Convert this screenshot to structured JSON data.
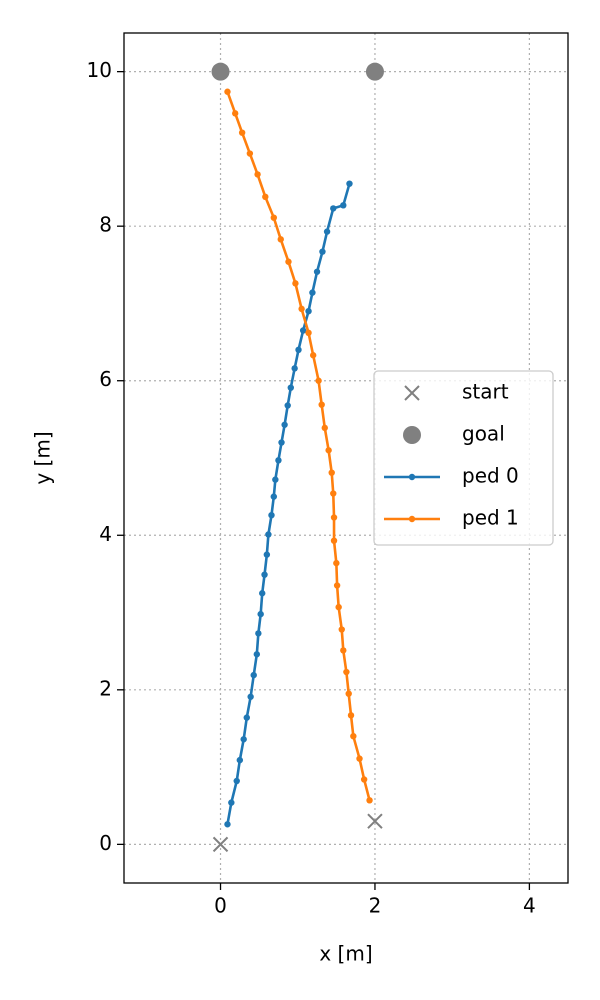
{
  "chart_data": {
    "type": "line",
    "xlabel": "x [m]",
    "ylabel": "y [m]",
    "xlim": [
      -1.25,
      4.5
    ],
    "ylim": [
      -0.5,
      10.5
    ],
    "xticks": [
      0,
      2,
      4
    ],
    "yticks": [
      0,
      2,
      4,
      6,
      8,
      10
    ],
    "grid": true,
    "legend": "center right",
    "series": [
      {
        "name": "start",
        "color": "#808080",
        "marker": "x",
        "linestyle": "none",
        "x": [
          0,
          2
        ],
        "y": [
          0,
          0.3
        ]
      },
      {
        "name": "goal",
        "color": "#808080",
        "marker": "o",
        "linestyle": "none",
        "x": [
          0,
          2
        ],
        "y": [
          10,
          10
        ]
      },
      {
        "name": "ped 0",
        "color": "#1f77b4",
        "marker": ".",
        "linestyle": "-",
        "x": [
          0.09,
          0.14,
          0.21,
          0.25,
          0.3,
          0.34,
          0.39,
          0.43,
          0.47,
          0.49,
          0.52,
          0.54,
          0.57,
          0.6,
          0.62,
          0.66,
          0.69,
          0.71,
          0.75,
          0.79,
          0.83,
          0.87,
          0.91,
          0.96,
          1.01,
          1.07,
          1.14,
          1.19,
          1.25,
          1.32,
          1.38,
          1.46,
          1.59,
          1.67
        ],
        "y": [
          0.26,
          0.54,
          0.82,
          1.09,
          1.36,
          1.64,
          1.91,
          2.19,
          2.46,
          2.73,
          2.98,
          3.25,
          3.49,
          3.75,
          4.01,
          4.26,
          4.5,
          4.72,
          4.97,
          5.2,
          5.43,
          5.68,
          5.91,
          6.16,
          6.4,
          6.65,
          6.9,
          7.14,
          7.41,
          7.67,
          7.93,
          8.23,
          8.27,
          8.55
        ]
      },
      {
        "name": "ped 1",
        "color": "#ff7f0e",
        "marker": ".",
        "linestyle": "-",
        "x": [
          0.09,
          0.19,
          0.28,
          0.38,
          0.48,
          0.58,
          0.69,
          0.78,
          0.88,
          0.97,
          1.05,
          1.14,
          1.2,
          1.27,
          1.31,
          1.35,
          1.4,
          1.44,
          1.46,
          1.47,
          1.47,
          1.5,
          1.51,
          1.53,
          1.57,
          1.59,
          1.63,
          1.66,
          1.69,
          1.72,
          1.8,
          1.86,
          1.93
        ],
        "y": [
          9.74,
          9.46,
          9.21,
          8.94,
          8.67,
          8.38,
          8.11,
          7.83,
          7.54,
          7.26,
          6.93,
          6.62,
          6.33,
          6.0,
          5.69,
          5.39,
          5.1,
          4.81,
          4.54,
          4.23,
          3.93,
          3.64,
          3.35,
          3.07,
          2.78,
          2.51,
          2.23,
          1.95,
          1.67,
          1.4,
          1.11,
          0.84,
          0.57
        ]
      }
    ]
  }
}
